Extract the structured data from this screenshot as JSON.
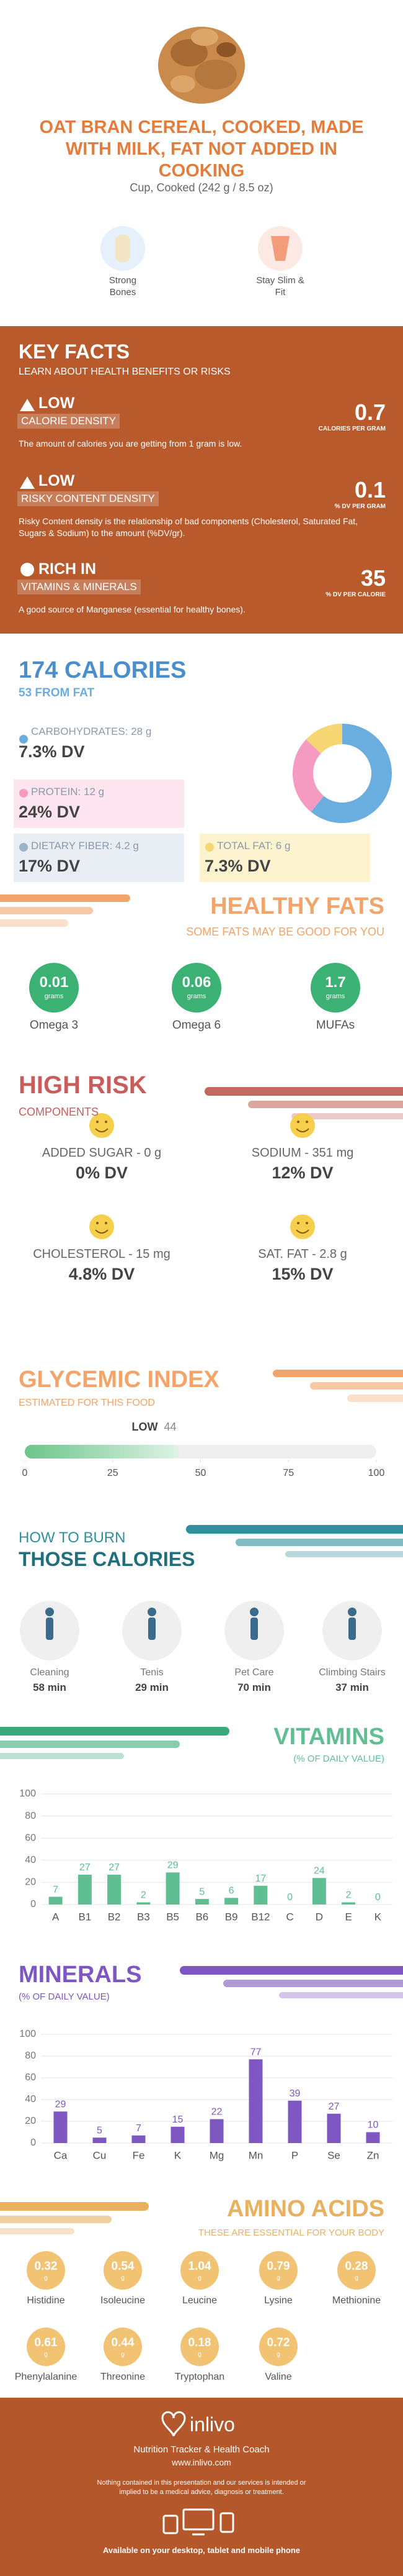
{
  "header": {
    "title": "OAT BRAN CEREAL, COOKED, MADE WITH MILK, FAT NOT ADDED IN COOKING",
    "serving": "Cup, Cooked (242 g / 8.5 oz)",
    "benefits": [
      "Strong Bones",
      "Stay Slim & Fit"
    ]
  },
  "key_facts": {
    "title": "KEY FACTS",
    "subtitle": "LEARN ABOUT HEALTH BENEFITS OR RISKS",
    "facts": [
      {
        "level": "LOW",
        "name": "CALORIE DENSITY",
        "value": 0.7,
        "unit": "CALORIES PER GRAM",
        "description": "The amount of calories you are getting from 1 gram is low."
      },
      {
        "level": "LOW",
        "name": "RISKY CONTENT DENSITY",
        "value": 0.1,
        "unit": "% DV PER GRAM",
        "description": "Risky Content density is the relationship of bad components (Cholesterol, Saturated Fat, Sugars & Sodium) to the amount (%DV/gr)."
      },
      {
        "level": "RICH IN",
        "name": "VITAMINS & MINERALS",
        "value": 35,
        "unit": "% DV PER CALORIE",
        "description": "A good source of Manganese (essential for healthy bones)."
      }
    ]
  },
  "calories": {
    "title": "174 CALORIES",
    "subtitle": "53 FROM FAT",
    "nutrients": [
      {
        "label": "CARBOHYDRATES: 28 g",
        "dv": "7.3% DV"
      },
      {
        "label": "PROTEIN: 12 g",
        "dv": "24% DV"
      },
      {
        "label": "DIETARY FIBER: 4.2 g",
        "dv": "17% DV"
      },
      {
        "label": "TOTAL FAT: 6 g",
        "dv": "7.3% DV"
      }
    ]
  },
  "healthy_fats": {
    "title": "HEALTHY FATS",
    "subtitle": "SOME FATS MAY BE GOOD FOR YOU",
    "items": [
      {
        "value": 0.01,
        "unit": "grams",
        "name": "Omega 3"
      },
      {
        "value": 0.06,
        "unit": "grams",
        "name": "Omega 6"
      },
      {
        "value": 1.7,
        "unit": "grams",
        "name": "MUFAs"
      }
    ]
  },
  "high_risk": {
    "title": "HIGH RISK",
    "subtitle": "COMPONENTS",
    "items": [
      {
        "label": "ADDED SUGAR - 0 g",
        "dv": "0% DV"
      },
      {
        "label": "SODIUM - 351 mg",
        "dv": "12% DV"
      },
      {
        "label": "CHOLESTEROL - 15 mg",
        "dv": "4.8% DV"
      },
      {
        "label": "SAT. FAT - 2.8 g",
        "dv": "15% DV"
      }
    ]
  },
  "burn": {
    "title": "HOW TO BURN",
    "subtitle": "THOSE CALORIES",
    "activities": [
      {
        "name": "Cleaning",
        "time": "58 min"
      },
      {
        "name": "Tenis",
        "time": "29 min"
      },
      {
        "name": "Pet Care",
        "time": "70 min"
      },
      {
        "name": "Climbing Stairs",
        "time": "37 min"
      }
    ]
  },
  "amino_acids": {
    "title": "AMINO ACIDS",
    "subtitle": "THESE ARE ESSENTIAL FOR YOUR BODY",
    "items": [
      {
        "value": 0.32,
        "unit": "g",
        "name": "Histidine"
      },
      {
        "value": 0.54,
        "unit": "g",
        "name": "Isoleucine"
      },
      {
        "value": 1.04,
        "unit": "g",
        "name": "Leucine"
      },
      {
        "value": 0.79,
        "unit": "g",
        "name": "Lysine"
      },
      {
        "value": 0.28,
        "unit": "g",
        "name": "Methionine"
      },
      {
        "value": 0.61,
        "unit": "g",
        "name": "Phenylalanine"
      },
      {
        "value": 0.44,
        "unit": "g",
        "name": "Threonine"
      },
      {
        "value": 0.18,
        "unit": "g",
        "name": "Tryptophan"
      },
      {
        "value": 0.72,
        "unit": "g",
        "name": "Valine"
      }
    ]
  },
  "footer": {
    "brand": "inlivo",
    "tagline": "Nutrition Tracker & Health Coach",
    "url": "www.inlivo.com",
    "disclaimer": "Nothing contained in this presentation and our services is intended or implied to be a medical advice, diagnosis or treatment.",
    "availability": "Available on your desktop, tablet and mobile phone"
  },
  "chart_data": [
    {
      "type": "pie",
      "values": [
        28,
        12,
        6
      ],
      "colors": [
        "#6aaee0",
        "#f59ac0",
        "#f7d774"
      ]
    },
    {
      "type": "gauge",
      "title": "GLYCEMIC INDEX",
      "subtitle": "ESTIMATED FOR THIS FOOD",
      "label": "LOW",
      "value": 44,
      "xlim": [
        0,
        100
      ],
      "xticks": [
        0,
        25,
        50,
        75,
        100
      ],
      "color": "#6cc58a"
    },
    {
      "type": "bar",
      "title": "VITAMINS",
      "subtitle": "(% OF DAILY VALUE)",
      "categories": [
        "A",
        "B1",
        "B2",
        "B3",
        "B5",
        "B6",
        "B9",
        "B12",
        "C",
        "D",
        "E",
        "K"
      ],
      "values": [
        7,
        27,
        27,
        2,
        29,
        5,
        6,
        17,
        0,
        24,
        2,
        0
      ],
      "color": "#5fbf92",
      "ylim": [
        0,
        100
      ],
      "yticks": [
        0,
        20,
        40,
        60,
        80,
        100
      ],
      "grid": true
    },
    {
      "type": "bar",
      "title": "MINERALS",
      "subtitle": "(% OF DAILY VALUE)",
      "categories": [
        "Ca",
        "Cu",
        "Fe",
        "K",
        "Mg",
        "Mn",
        "P",
        "Se",
        "Zn"
      ],
      "values": [
        29,
        5,
        7,
        15,
        22,
        77,
        39,
        27,
        10
      ],
      "color": "#7e57c2",
      "ylim": [
        0,
        100
      ],
      "yticks": [
        0,
        20,
        40,
        60,
        80,
        100
      ],
      "grid": true
    }
  ]
}
